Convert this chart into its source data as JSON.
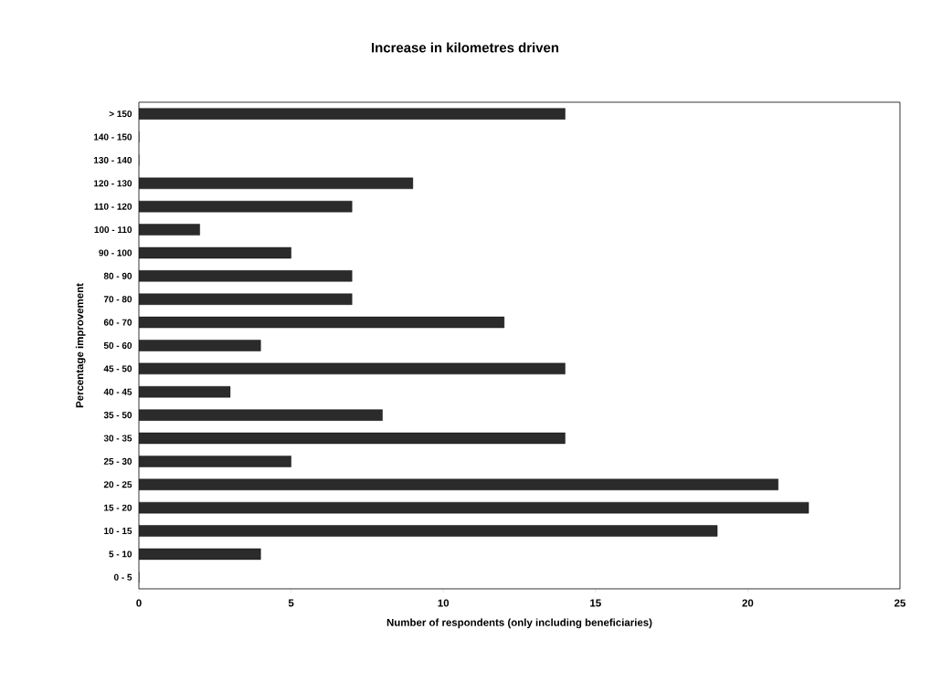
{
  "chart_data": {
    "type": "bar",
    "orientation": "horizontal",
    "title": "Increase in kilometres driven",
    "xlabel": "Number of respondents (only including beneficiaries)",
    "ylabel": "Percentage improvement",
    "categories": [
      "> 150",
      "140 - 150",
      "130 - 140",
      "120 - 130",
      "110 - 120",
      "100 - 110",
      "90 - 100",
      "80 - 90",
      "70 - 80",
      "60 - 70",
      "50 - 60",
      "45 - 50",
      "40 - 45",
      "35 - 50",
      "30 - 35",
      "25 - 30",
      "20 - 25",
      "15 - 20",
      "10 - 15",
      "5 - 10",
      "0 - 5"
    ],
    "values": [
      14,
      0,
      0,
      9,
      7,
      2,
      5,
      7,
      7,
      12,
      4,
      14,
      3,
      8,
      14,
      5,
      21,
      22,
      19,
      4,
      0
    ],
    "color": "#2b2b2b",
    "xlim": [
      0,
      25
    ],
    "xticks": [
      0,
      5,
      10,
      15,
      20,
      25
    ]
  }
}
